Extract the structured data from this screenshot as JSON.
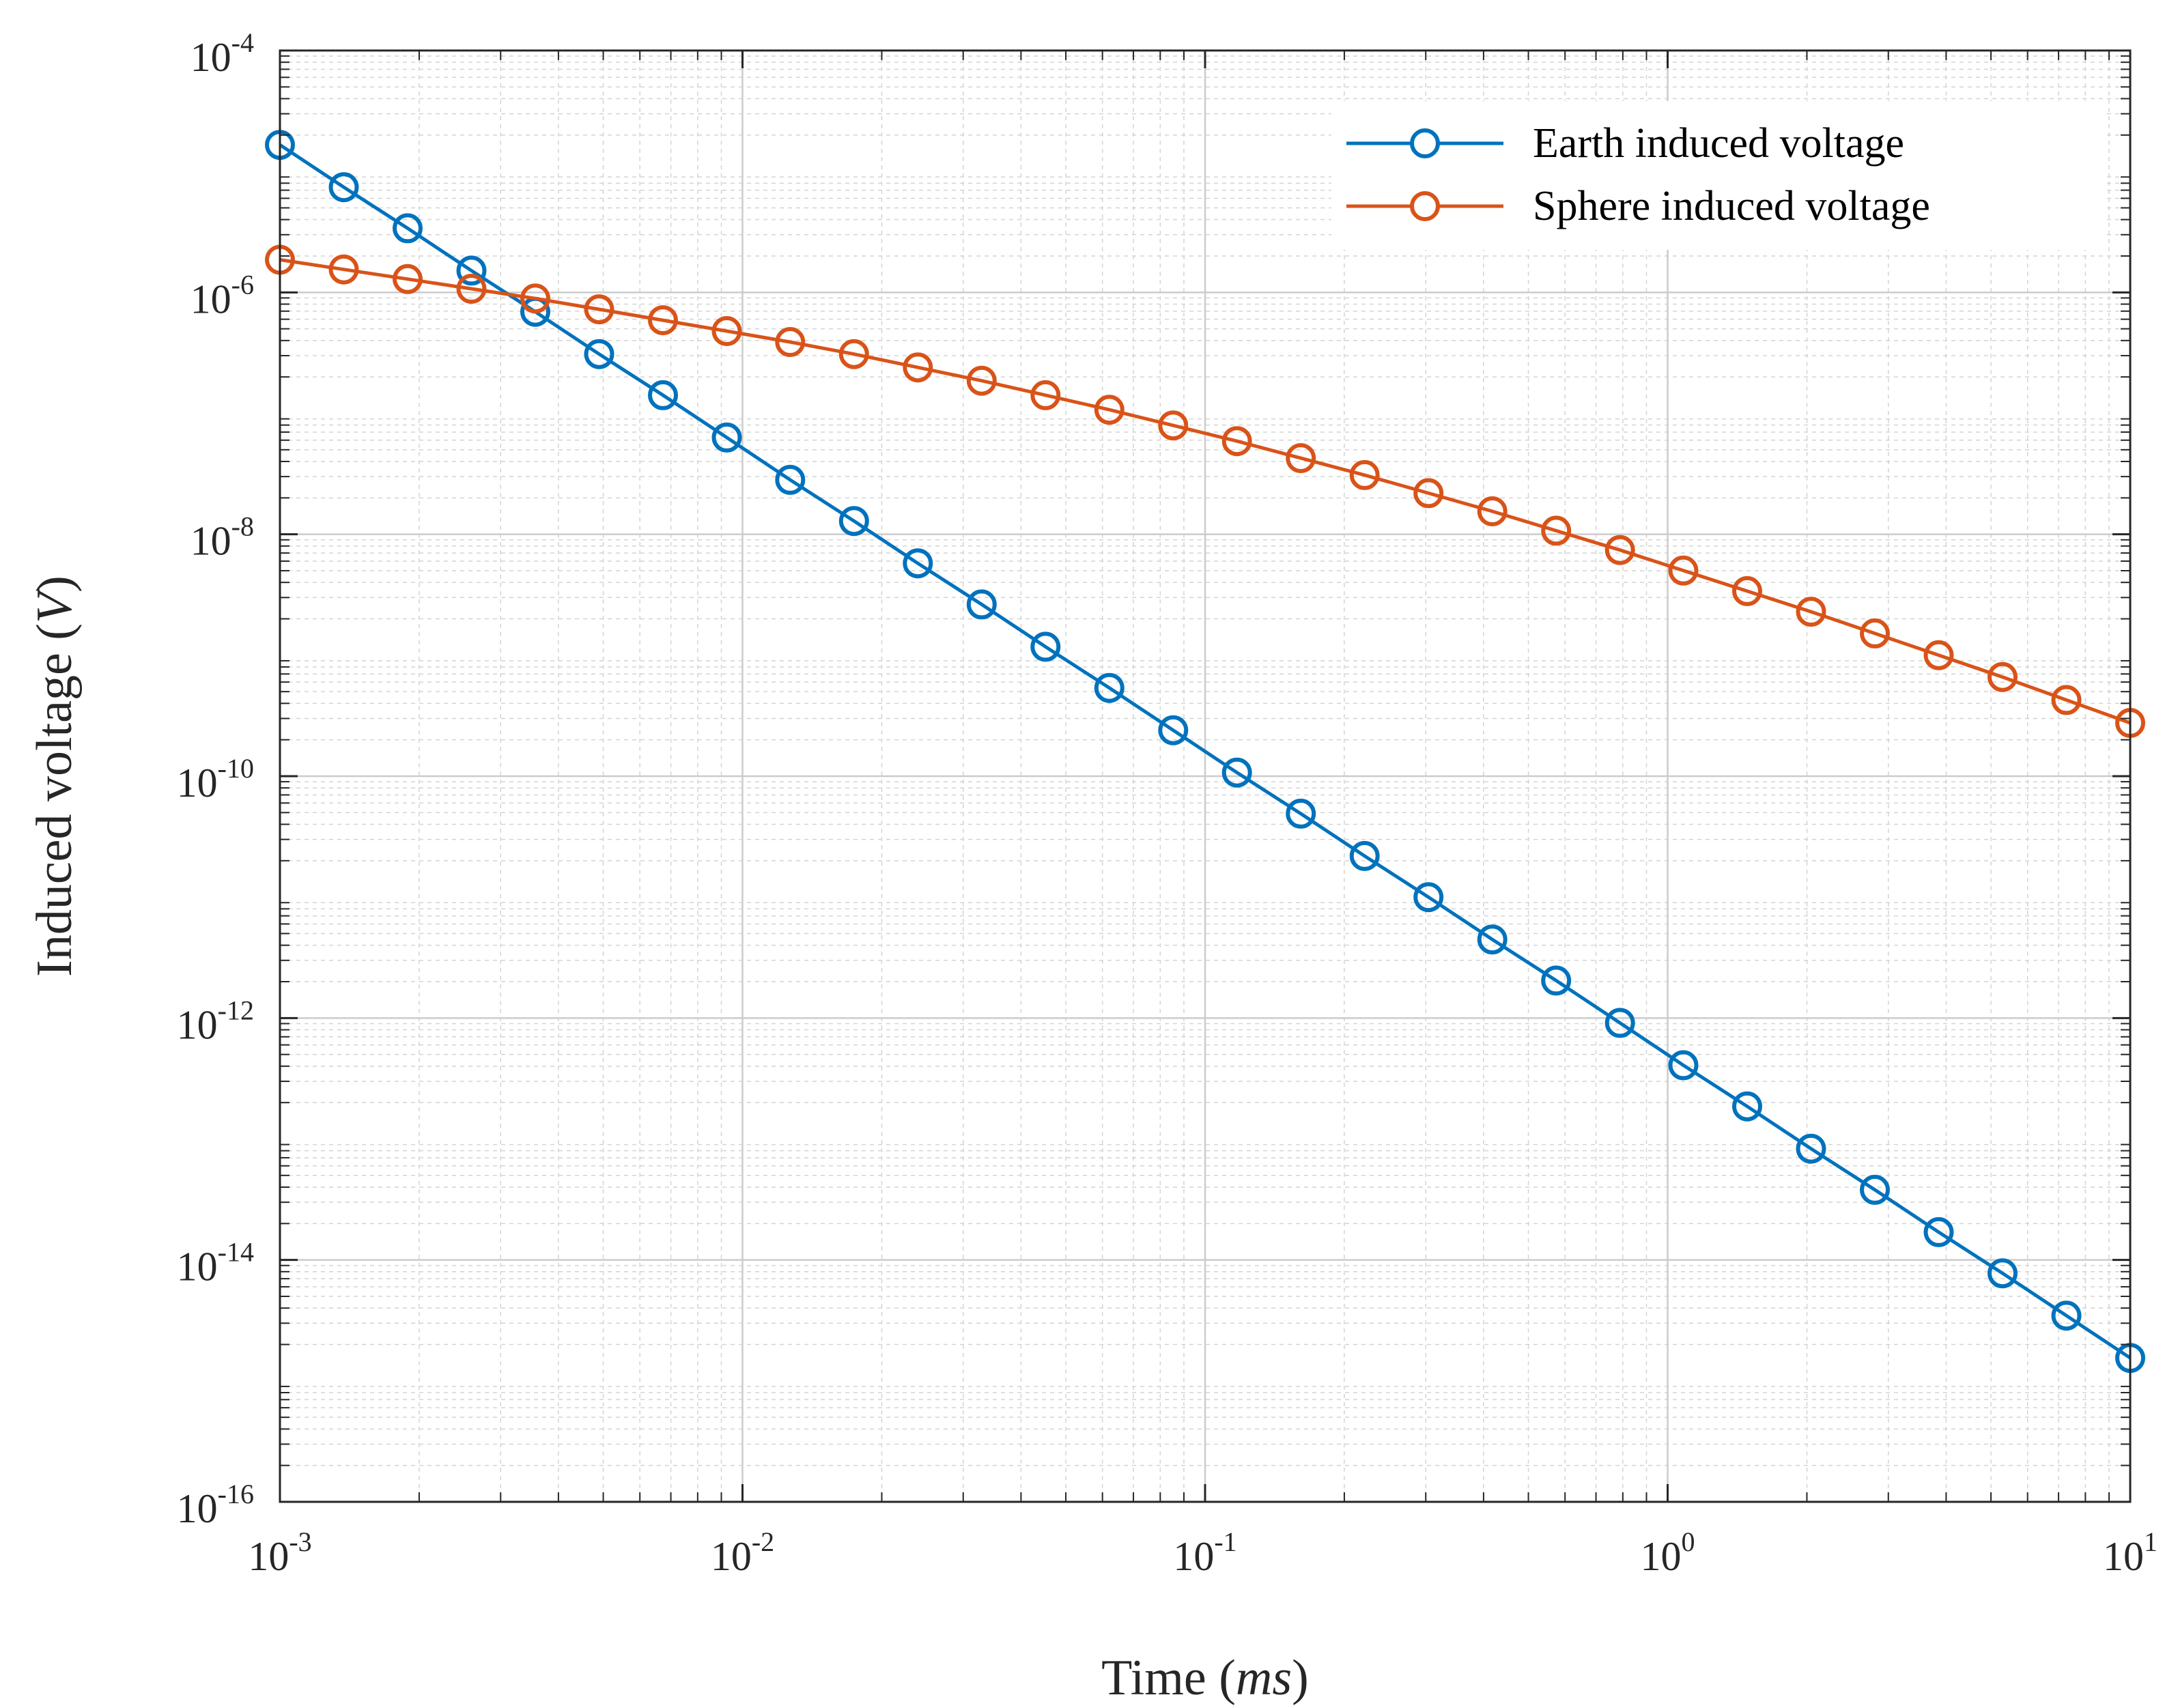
{
  "chart_data": {
    "type": "line",
    "xscale": "log",
    "yscale": "log",
    "xlabel_text": "Time",
    "xlabel_unit": "ms",
    "ylabel_text": "Induced voltage",
    "ylabel_unit": "V",
    "xlim": [
      0.001,
      10
    ],
    "ylim": [
      1e-16,
      0.0001
    ],
    "grid": true,
    "legend_position": "top-right",
    "x_ticks": [
      {
        "base": "10",
        "exp": "-3",
        "value": 0.001
      },
      {
        "base": "10",
        "exp": "-2",
        "value": 0.01
      },
      {
        "base": "10",
        "exp": "-1",
        "value": 0.1
      },
      {
        "base": "10",
        "exp": "0",
        "value": 1
      },
      {
        "base": "10",
        "exp": "1",
        "value": 10
      }
    ],
    "y_ticks": [
      {
        "base": "10",
        "exp": "-4",
        "value": 0.0001
      },
      {
        "base": "10",
        "exp": "-6",
        "value": 1e-06
      },
      {
        "base": "10",
        "exp": "-8",
        "value": 1e-08
      },
      {
        "base": "10",
        "exp": "-10",
        "value": 1e-10
      },
      {
        "base": "10",
        "exp": "-12",
        "value": 1e-12
      },
      {
        "base": "10",
        "exp": "-14",
        "value": 1e-14
      },
      {
        "base": "10",
        "exp": "-16",
        "value": 1e-16
      }
    ],
    "series": [
      {
        "name": "Earth induced voltage",
        "color": "#0072BD",
        "marker": "circle",
        "log10_x": [
          -3.0,
          -2.862,
          -2.724,
          -2.586,
          -2.448,
          -2.31,
          -2.172,
          -2.034,
          -1.897,
          -1.759,
          -1.621,
          -1.483,
          -1.345,
          -1.207,
          -1.069,
          -0.931,
          -0.793,
          -0.655,
          -0.517,
          -0.379,
          -0.241,
          -0.103,
          0.034,
          0.172,
          0.31,
          0.448,
          0.586,
          0.724,
          0.862,
          1.0
        ],
        "log10_y": [
          -4.78,
          -5.13,
          -5.47,
          -5.82,
          -6.16,
          -6.51,
          -6.85,
          -7.2,
          -7.55,
          -7.89,
          -8.24,
          -8.58,
          -8.93,
          -9.27,
          -9.62,
          -9.97,
          -10.31,
          -10.66,
          -11.0,
          -11.35,
          -11.69,
          -12.04,
          -12.39,
          -12.73,
          -13.08,
          -13.42,
          -13.77,
          -14.11,
          -14.46,
          -14.81
        ]
      },
      {
        "name": "Sphere induced voltage",
        "color": "#D95319",
        "marker": "circle",
        "log10_x": [
          -3.0,
          -2.862,
          -2.724,
          -2.586,
          -2.448,
          -2.31,
          -2.172,
          -2.034,
          -1.897,
          -1.759,
          -1.621,
          -1.483,
          -1.345,
          -1.207,
          -1.069,
          -0.931,
          -0.793,
          -0.655,
          -0.517,
          -0.379,
          -0.241,
          -0.103,
          0.034,
          0.172,
          0.31,
          0.448,
          0.586,
          0.724,
          0.862,
          1.0
        ],
        "log10_y": [
          -5.73,
          -5.81,
          -5.89,
          -5.97,
          -6.05,
          -6.14,
          -6.23,
          -6.32,
          -6.41,
          -6.51,
          -6.62,
          -6.73,
          -6.85,
          -6.97,
          -7.1,
          -7.23,
          -7.37,
          -7.51,
          -7.66,
          -7.81,
          -7.97,
          -8.13,
          -8.3,
          -8.47,
          -8.64,
          -8.82,
          -9.0,
          -9.18,
          -9.37,
          -9.56
        ]
      }
    ]
  }
}
